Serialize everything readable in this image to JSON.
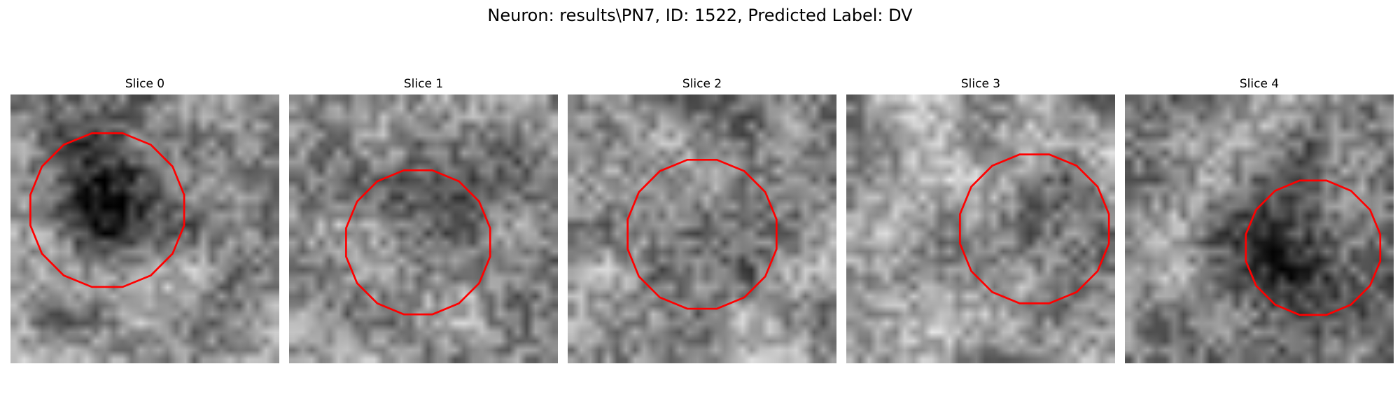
{
  "title": "Neuron: results\\PN7, ID: 1522, Predicted Label: DV",
  "panels": [
    {
      "label": "Slice 0",
      "seed": 11,
      "blob": [
        0.36,
        0.38,
        0.3,
        0.85
      ],
      "roi": [
        0.36,
        0.43,
        0.31
      ]
    },
    {
      "label": "Slice 1",
      "seed": 23,
      "blob": [
        0.5,
        0.45,
        0.28,
        0.55
      ],
      "roi": [
        0.48,
        0.55,
        0.29
      ]
    },
    {
      "label": "Slice 2",
      "seed": 37,
      "blob": [
        0.5,
        0.5,
        0.3,
        0.3
      ],
      "roi": [
        0.5,
        0.52,
        0.3
      ]
    },
    {
      "label": "Slice 3",
      "seed": 41,
      "blob": [
        0.65,
        0.5,
        0.28,
        0.3
      ],
      "roi": [
        0.7,
        0.5,
        0.3
      ]
    },
    {
      "label": "Slice 4",
      "seed": 53,
      "blob": [
        0.62,
        0.62,
        0.3,
        0.8
      ],
      "roi": [
        0.7,
        0.57,
        0.27
      ]
    }
  ],
  "colors": {
    "outline": "#ff0000"
  }
}
